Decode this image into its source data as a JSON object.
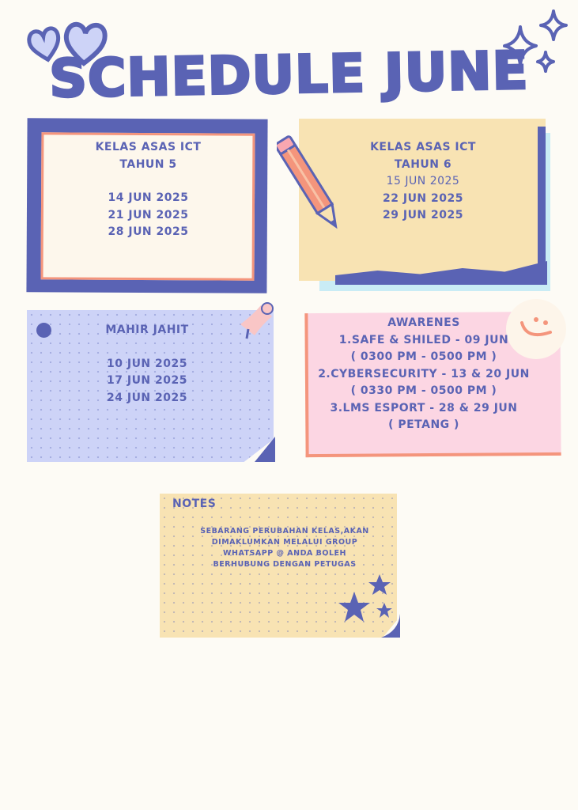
{
  "title": "SCHEDULE JUNE",
  "colors": {
    "background": "#fdfbf5",
    "accent": "#5a63b4",
    "peach": "#f4957c",
    "yellow": "#f8e3b3",
    "lavender": "#cdd3f7",
    "pink": "#fcd6e3",
    "light_blue": "#c9ecf5"
  },
  "cards": {
    "tahun5": {
      "title": "KELAS ASAS ICT",
      "subtitle": "TAHUN 5",
      "dates": [
        "14 JUN 2025",
        "21 JUN 2025",
        "28 JUN 2025"
      ]
    },
    "tahun6": {
      "title": "KELAS ASAS ICT",
      "subtitle": "TAHUN 6",
      "dates": [
        "15 JUN 2025",
        "22 JUN 2025",
        "29 JUN 2025"
      ]
    },
    "jahit": {
      "title": "MAHIR JAHIT",
      "dates": [
        "10 JUN 2025",
        "17 JUN 2025",
        "24 JUN 2025"
      ]
    },
    "awareness": {
      "title": "AWARENES",
      "lines": [
        "1.SAFE & SHILED - 09 JUN",
        "( 0300 PM - 0500 PM )",
        "2.CYBERSECURITY - 13 & 20 JUN",
        "( 0330 PM - 0500 PM )",
        "3.LMS ESPORT - 28 & 29 JUN",
        "( PETANG )"
      ]
    }
  },
  "notes": {
    "title": "NOTES",
    "lines": [
      "SEBARANG PERUBAHAN KELAS,AKAN",
      "DIMAKLUMKAN MELALUI GROUP",
      "WHATSAPP @ ANDA BOLEH",
      "BERHUBUNG DENGAN PETUGAS"
    ]
  },
  "icons": [
    "heart-icon",
    "sparkle-icon",
    "pencil-icon",
    "pushpin-icon",
    "smiley-icon",
    "star-icon"
  ]
}
